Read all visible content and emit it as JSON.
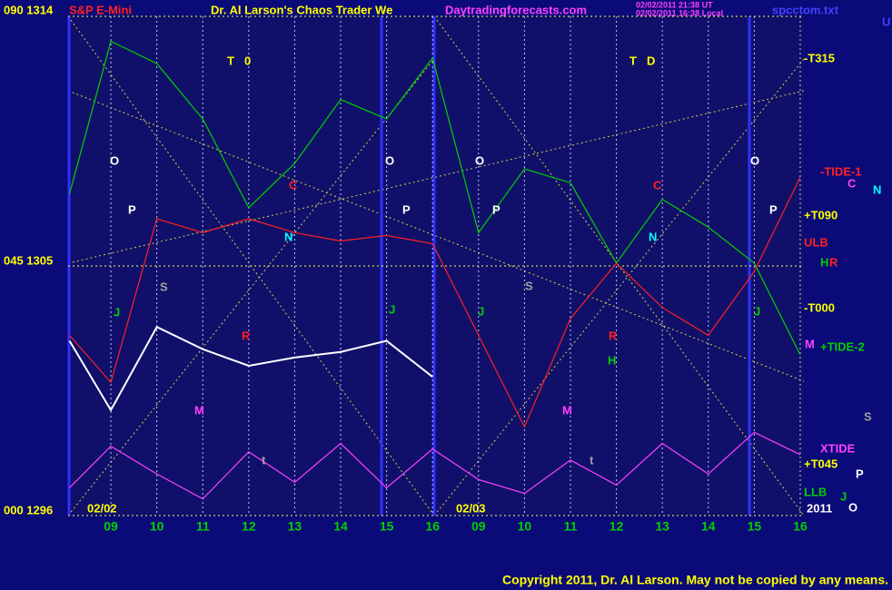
{
  "chart_data": {
    "type": "line",
    "title": "S&P E-Mini",
    "subtitle": "Dr. Al Larson's Chaos Trader We",
    "site": "Daytradingforecasts.com",
    "stamps": [
      "02/02/2011 21:38 UT",
      "02/02/2011 16:38 Local"
    ],
    "file": "spcctom.txt",
    "copyright": "Copyright 2011, Dr. Al Larson. May not be copied by any means.",
    "dates": [
      "02/02",
      "02/03",
      "2011"
    ],
    "x": [
      -0.9,
      0,
      1,
      2,
      3,
      4,
      5,
      6,
      7,
      8,
      9,
      10,
      11,
      12,
      13,
      14,
      15
    ],
    "xlim": [
      -0.93,
      15.08
    ],
    "xticks": [
      {
        "value": 0,
        "label": "09"
      },
      {
        "value": 1,
        "label": "10"
      },
      {
        "value": 2,
        "label": "11"
      },
      {
        "value": 3,
        "label": "12"
      },
      {
        "value": 4,
        "label": "13"
      },
      {
        "value": 5,
        "label": "14"
      },
      {
        "value": 6,
        "label": "15"
      },
      {
        "value": 7,
        "label": "16"
      },
      {
        "value": 8,
        "label": "09"
      },
      {
        "value": 9,
        "label": "10"
      },
      {
        "value": 10,
        "label": "11"
      },
      {
        "value": 11,
        "label": "12"
      },
      {
        "value": 12,
        "label": "13"
      },
      {
        "value": 13,
        "label": "14"
      },
      {
        "value": 14,
        "label": "15"
      },
      {
        "value": 15,
        "label": "16"
      }
    ],
    "ylim": [
      1296,
      1314
    ],
    "yticks": [
      {
        "value": 1314,
        "label": "090  1314"
      },
      {
        "value": 1305,
        "label": "045  1305"
      },
      {
        "value": 1296,
        "label": "000  1296"
      }
    ],
    "grid": true,
    "series": [
      {
        "name": "green",
        "color": "#00d000",
        "values": [
          1307.6,
          1313.1,
          1312.3,
          1310.3,
          1307.1,
          1308.7,
          1311.0,
          1310.3,
          1312.5,
          1306.2,
          1308.5,
          1308.0,
          1305.1,
          1307.4,
          1306.4,
          1305.1,
          1301.8
        ]
      },
      {
        "name": "red",
        "color": "#ff2020",
        "values": [
          1302.5,
          1300.8,
          1306.7,
          1306.2,
          1306.7,
          1306.2,
          1305.9,
          1306.1,
          1305.8,
          1302.5,
          1299.2,
          1303.1,
          1305.1,
          1303.5,
          1302.5,
          1304.8,
          1308.2
        ]
      },
      {
        "name": "magenta",
        "color": "#ff40ff",
        "values": [
          1297.0,
          1298.5,
          1297.5,
          1296.6,
          1298.3,
          1297.2,
          1298.6,
          1297.0,
          1298.4,
          1297.3,
          1296.8,
          1298.0,
          1297.1,
          1298.6,
          1297.5,
          1299.0,
          1298.2
        ]
      },
      {
        "name": "price",
        "color": "#ffffff",
        "values": [
          1302.3,
          1299.8,
          1302.8,
          1302.0,
          1301.4,
          1301.7,
          1301.9,
          1302.3,
          1301.0,
          null,
          null,
          null,
          null,
          null,
          null,
          null,
          null
        ]
      }
    ],
    "right_labels": [
      {
        "text": "-T315",
        "color": "#ffff00"
      },
      {
        "text": "-TIDE-1",
        "color": "#ff2020"
      },
      {
        "text": "C",
        "color": "#ff40ff"
      },
      {
        "text": "N",
        "color": "#00ffff"
      },
      {
        "text": "+T090",
        "color": "#ffff00"
      },
      {
        "text": "ULB",
        "color": "#ff2020"
      },
      {
        "text": "H",
        "color": "#00d000"
      },
      {
        "text": "R",
        "color": "#ff2020"
      },
      {
        "text": "-T000",
        "color": "#ffff00"
      },
      {
        "text": "M",
        "color": "#ff40ff"
      },
      {
        "text": "+TIDE-2",
        "color": "#00d000"
      },
      {
        "text": "S",
        "color": "#a0a0a0"
      },
      {
        "text": "XTIDE",
        "color": "#ff40ff"
      },
      {
        "text": "+T045",
        "color": "#ffff00"
      },
      {
        "text": "P",
        "color": "#ffffff"
      },
      {
        "text": "LLB",
        "color": "#00d000"
      },
      {
        "text": "J",
        "color": "#00d000"
      },
      {
        "text": "O",
        "color": "#ffffff"
      },
      {
        "text": "U",
        "color": "#4040ff"
      }
    ],
    "markers": [
      {
        "text": "T",
        "color": "#ffff00"
      },
      {
        "text": "0",
        "color": "#ffff00"
      },
      {
        "text": "O",
        "color": "#ffffff"
      },
      {
        "text": "P",
        "color": "#ffffff"
      },
      {
        "text": "C",
        "color": "#ff2020"
      },
      {
        "text": "N",
        "color": "#00ffff"
      },
      {
        "text": "S",
        "color": "#a0a0a0"
      },
      {
        "text": "J",
        "color": "#00d000"
      },
      {
        "text": "R",
        "color": "#ff2020"
      },
      {
        "text": "M",
        "color": "#ff40ff"
      },
      {
        "text": "t",
        "color": "#a0a0a0"
      },
      {
        "text": "O",
        "color": "#ffffff"
      },
      {
        "text": "P",
        "color": "#ffffff"
      },
      {
        "text": "J",
        "color": "#00d000"
      },
      {
        "text": "T",
        "color": "#ffff00"
      },
      {
        "text": "D",
        "color": "#ffff00"
      },
      {
        "text": "O",
        "color": "#ffffff"
      },
      {
        "text": "P",
        "color": "#ffffff"
      },
      {
        "text": "C",
        "color": "#ff2020"
      },
      {
        "text": "N",
        "color": "#00ffff"
      },
      {
        "text": "S",
        "color": "#a0a0a0"
      },
      {
        "text": "J",
        "color": "#00d000"
      },
      {
        "text": "R",
        "color": "#ff2020"
      },
      {
        "text": "H",
        "color": "#00d000"
      },
      {
        "text": "M",
        "color": "#ff40ff"
      },
      {
        "text": "t",
        "color": "#a0a0a0"
      },
      {
        "text": "O",
        "color": "#ffffff"
      },
      {
        "text": "P",
        "color": "#ffffff"
      },
      {
        "text": "J",
        "color": "#00d000"
      }
    ]
  }
}
